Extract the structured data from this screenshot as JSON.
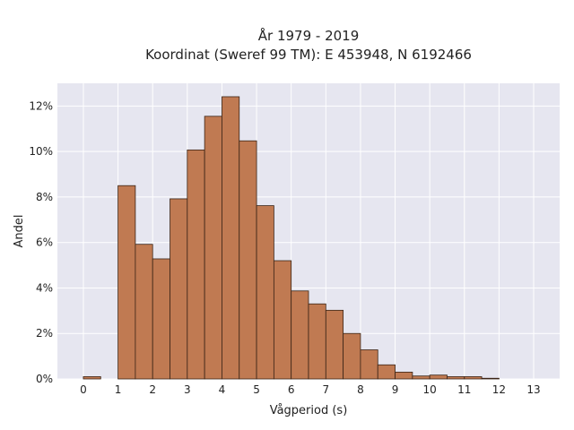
{
  "chart_data": {
    "type": "bar",
    "title": [
      "År 1979 - 2019",
      "Koordinat (Sweref 99 TM): E 453948, N 6192466"
    ],
    "xlabel": "Vågperiod (s)",
    "ylabel": "Andel",
    "xlim": [
      -0.75,
      13.75
    ],
    "ylim": [
      0,
      0.13
    ],
    "x_ticks": [
      0,
      1,
      2,
      3,
      4,
      5,
      6,
      7,
      8,
      9,
      10,
      11,
      12,
      13
    ],
    "y_ticks": [
      0,
      0.02,
      0.04,
      0.06,
      0.08,
      0.1,
      0.12
    ],
    "y_tick_labels": [
      "0%",
      "2%",
      "4%",
      "6%",
      "8%",
      "10%",
      "12%"
    ],
    "bin_width": 0.5,
    "bin_starts": [
      0.0,
      1.0,
      1.5,
      2.0,
      2.5,
      3.0,
      3.5,
      4.0,
      4.5,
      5.0,
      5.5,
      6.0,
      6.5,
      7.0,
      7.5,
      8.0,
      8.5,
      9.0,
      9.5,
      10.0,
      10.5,
      11.0,
      11.5
    ],
    "values": [
      0.001,
      0.085,
      0.0592,
      0.0528,
      0.0792,
      0.1007,
      0.1155,
      0.1241,
      0.1047,
      0.0762,
      0.052,
      0.0387,
      0.033,
      0.0302,
      0.02,
      0.0128,
      0.0062,
      0.003,
      0.0013,
      0.0017,
      0.001,
      0.001,
      0.0003
    ],
    "grid": true,
    "colors": {
      "bar_fill": "#c07a52",
      "bar_edge": "#3a2416",
      "plot_bg": "#e6e6f0",
      "grid": "#ffffff"
    }
  }
}
